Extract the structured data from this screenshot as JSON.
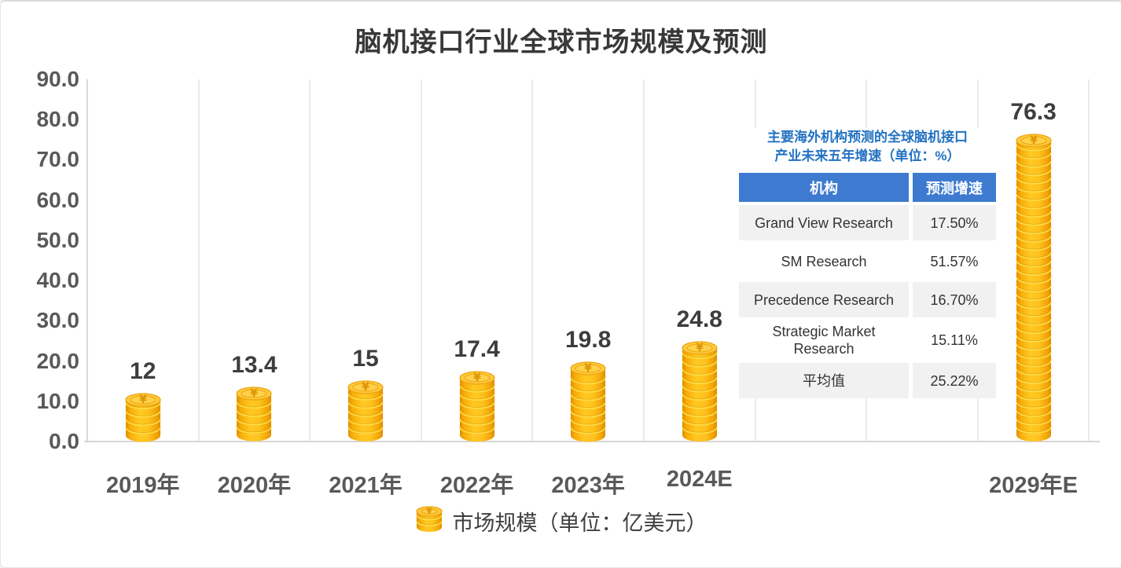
{
  "title": "脑机接口行业全球市场规模及预测",
  "chart_data": {
    "type": "bar",
    "title": "脑机接口行业全球市场规模及预测",
    "categories": [
      "2019年",
      "2020年",
      "2021年",
      "2022年",
      "2023年",
      "2024E",
      "2029年E"
    ],
    "values": [
      12,
      13.4,
      15,
      17.4,
      19.8,
      24.8,
      76.3
    ],
    "value_labels": [
      "12",
      "13.4",
      "15",
      "17.4",
      "19.8",
      "24.8",
      "76.3"
    ],
    "slots": [
      0,
      1,
      2,
      3,
      4,
      5,
      8
    ],
    "total_slots": 9,
    "xlabel": "",
    "ylabel": "",
    "ylim": [
      0,
      90
    ],
    "ytick_step": 10,
    "ytick_labels": [
      "0.0",
      "10.0",
      "20.0",
      "30.0",
      "40.0",
      "50.0",
      "60.0",
      "70.0",
      "80.0",
      "90.0"
    ],
    "grid": "vertical-only",
    "legend_label": "市场规模（单位：亿美元）",
    "legend_position": "bottom",
    "bar_style": "gold-coin-stack"
  },
  "inset_table": {
    "title": [
      "主要海外机构预测的全球脑机接口",
      "产业未来五年增速（单位：%）"
    ],
    "headers": [
      "机构",
      "预测增速"
    ],
    "rows": [
      {
        "org": "Grand View Research",
        "growth": "17.50%"
      },
      {
        "org": "SM Research",
        "growth": "51.57%"
      },
      {
        "org": "Precedence Research",
        "growth": "16.70%"
      },
      {
        "org": "Strategic Market Research",
        "growth": "15.11%"
      },
      {
        "org": "平均值",
        "growth": "25.22%"
      }
    ]
  },
  "colors": {
    "coin_body": "#F8B009",
    "coin_band_highlight": "#FFDC45",
    "coin_face": "#FFC93E",
    "coin_outline": "#ECA50F",
    "coin_symbol": "#DD9404",
    "table_header_bg": "#3E7BD0",
    "table_header_text": "#FFFFFF",
    "table_row_alt_bg": "#F1F1F1",
    "table_title_text": "#2272C3",
    "axis_text": "#595959",
    "value_label_text": "#3D3D3D",
    "gridline": "#ECEAE6",
    "baseline": "#D8D6D2",
    "chart_title_text": "#383838"
  }
}
